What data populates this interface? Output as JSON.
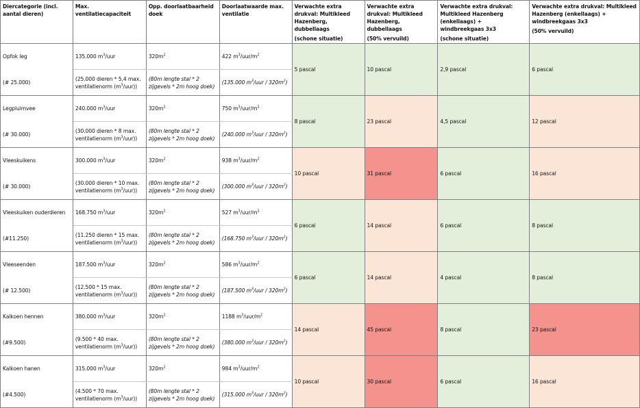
{
  "headers": [
    {
      "text": "Diercategorie (incl. aantal dieren)",
      "note": ""
    },
    {
      "text": "Max. ventilatiecapaciteit",
      "note": ""
    },
    {
      "text": "Opp. doorlaatbaarheid doek",
      "note": ""
    },
    {
      "text": "Doorlaatwaarde max. ventilatie",
      "note": ""
    },
    {
      "text": "Verwachte extra drukval: Multikleed Hazenberg, dubbellaags",
      "note": "(schone situatie)"
    },
    {
      "text": "Verwachte extra drukval: Multikleed Hazenberg, dubbellaags",
      "note": "(50% vervuild)"
    },
    {
      "text": "Verwachte extra drukval: Multikleed Hazenberg (enkellaags) + windbreekgaas 3x3",
      "note": "(schone situatie)"
    },
    {
      "text": "Verwachte extra drukval: Multikleed Hazenberg (enkellaags) + windbreekgaas 3x3",
      "note": "(50% vervuild)"
    }
  ],
  "rows": [
    {
      "name": "Opfok leg",
      "count": "(# 25.000)",
      "vent": "135.000 m³/uur",
      "vent_calc": "(25.000 dieren * 5,4 max. ventilatienorm (m³/uur))",
      "area": "320m²",
      "area_calc": "(80m lengte stal * 2 zijgevels * 2m hoog doek)",
      "rate": "422 m³/uur/m²",
      "rate_calc": "(135.000 m³/uur / 320m²)",
      "p": [
        "5 pascal",
        "10 pascal",
        "2,9 pascal",
        "6 pascal"
      ],
      "c": [
        "g",
        "g",
        "g",
        "g"
      ]
    },
    {
      "name": "Legpluimvee",
      "count": "(# 30.000)",
      "vent": "240.000 m³/uur",
      "vent_calc": "(30.000 dieren * 8 max. ventilatienorm (m³/uur))",
      "area": "320m²",
      "area_calc": "(80m lengte stal * 2 zijgevels * 2m hoog doek)",
      "rate": "750 m³/uur/m²",
      "rate_calc": "(240.000 m³/uur / 320m²)",
      "p": [
        "8 pascal",
        "23 pascal",
        "4,5 pascal",
        "12 pascal"
      ],
      "c": [
        "g",
        "l",
        "g",
        "l"
      ]
    },
    {
      "name": "Vleeskuikens",
      "count": "(# 30.000)",
      "vent": "300.000 m³/uur",
      "vent_calc": "(30.000 dieren * 10 max. ventilatienorm (m³/uur))",
      "area": "320m²",
      "area_calc": "(80m lengte stal * 2 zijgevels * 2m hoog doek)",
      "rate": "938 m³/uur/m²",
      "rate_calc": "(300.000 m³/uur / 320m²)",
      "p": [
        "10 pascal",
        "31 pascal",
        "6 pascal",
        "16 pascal"
      ],
      "c": [
        "l",
        "r",
        "g",
        "l"
      ]
    },
    {
      "name": "Vleeskuiken ouderdieren",
      "count": "(#11.250)",
      "vent": "168.750 m³/uur",
      "vent_calc": "(11.250 dieren * 15 max. ventilatienorm (m³/uur))",
      "area": "320m²",
      "area_calc": "(80m lengte stal * 2 zijgevels * 2m hoog doek)",
      "rate": "527 m³/uur/m²",
      "rate_calc": "(168.750 m³/uur / 320m²)",
      "p": [
        "6 pascal",
        "14 pascal",
        "6 pascal",
        "8 pascal"
      ],
      "c": [
        "g",
        "l",
        "g",
        "g"
      ]
    },
    {
      "name": "Vleeseenden",
      "count": "(# 12.500)",
      "vent": "187.500 m³/uur",
      "vent_calc": "(12.500 * 15 max. ventilatienorm (m³/uur))",
      "area": "320m²",
      "area_calc": "(80m lengte stal * 2 zijgevels * 2m hoog doek)",
      "rate": "586 m³/uur/m²",
      "rate_calc": "(187.500 m³/uur / 320m²)",
      "p": [
        "6 pascal",
        "14 pascal",
        "4 pascal",
        "8 pascal"
      ],
      "c": [
        "g",
        "l",
        "g",
        "g"
      ]
    },
    {
      "name": "Kalkoen hennen",
      "count": "(#9.500)",
      "vent": "380.000 m³/uur",
      "vent_calc": "(9.500 * 40 max. ventilatienorm (m³/uur))",
      "area": "320m²",
      "area_calc": "(80m lengte stal * 2 zijgevels * 2m hoog doek)",
      "rate": "1188 m³/uur/m²",
      "rate_calc": "(380.000 m³/uur / 320m²)",
      "p": [
        "14 pascal",
        "45 pascal",
        "8 pascal",
        "23 pascal"
      ],
      "c": [
        "l",
        "r",
        "g",
        "r"
      ]
    },
    {
      "name": "Kalkoen hanen",
      "count": "(#4.500)",
      "vent": "315.000 m³/uur",
      "vent_calc": "(4.500 * 70 max. ventilatienorm (m³/uur))",
      "area": "320m²",
      "area_calc": "(80m lengte stal * 2 zijgevels * 2m hoog doek)",
      "rate": "984 m³/uur/m²",
      "rate_calc": "(315.000 m³/uur / 320m²)",
      "p": [
        "10 pascal",
        "30 pascal",
        "6 pascal",
        "16 pascal"
      ],
      "c": [
        "l",
        "r",
        "g",
        "l"
      ]
    }
  ]
}
